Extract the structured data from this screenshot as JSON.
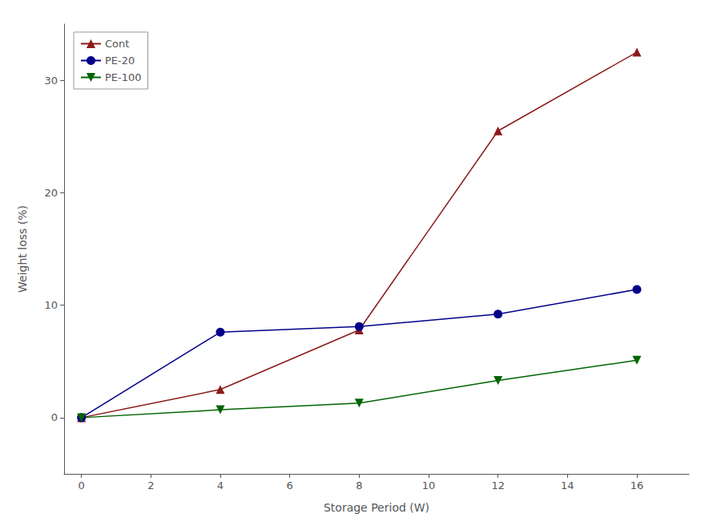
{
  "chart_data": {
    "type": "line",
    "xlabel": "Storage Period (W)",
    "ylabel": "Weight loss (%)",
    "x": [
      0,
      4,
      8,
      12,
      16
    ],
    "series": [
      {
        "name": "Cont",
        "color": "#8B1A1A",
        "marker": "triangle-up",
        "values": [
          0,
          2.5,
          7.8,
          25.5,
          32.5
        ]
      },
      {
        "name": "PE-20",
        "color": "#00008B",
        "marker": "circle",
        "values": [
          0,
          7.6,
          8.1,
          9.2,
          11.4
        ]
      },
      {
        "name": "PE-100",
        "color": "#006400",
        "marker": "triangle-down",
        "values": [
          0,
          0.7,
          1.3,
          3.3,
          5.1
        ]
      }
    ],
    "xlim": [
      -0.5,
      17.5
    ],
    "ylim": [
      -5,
      35
    ],
    "xticks": [
      0,
      2,
      4,
      6,
      8,
      10,
      12,
      14,
      16
    ],
    "yticks": [
      0,
      10,
      20,
      30
    ],
    "grid": false,
    "legend": "upper left"
  }
}
